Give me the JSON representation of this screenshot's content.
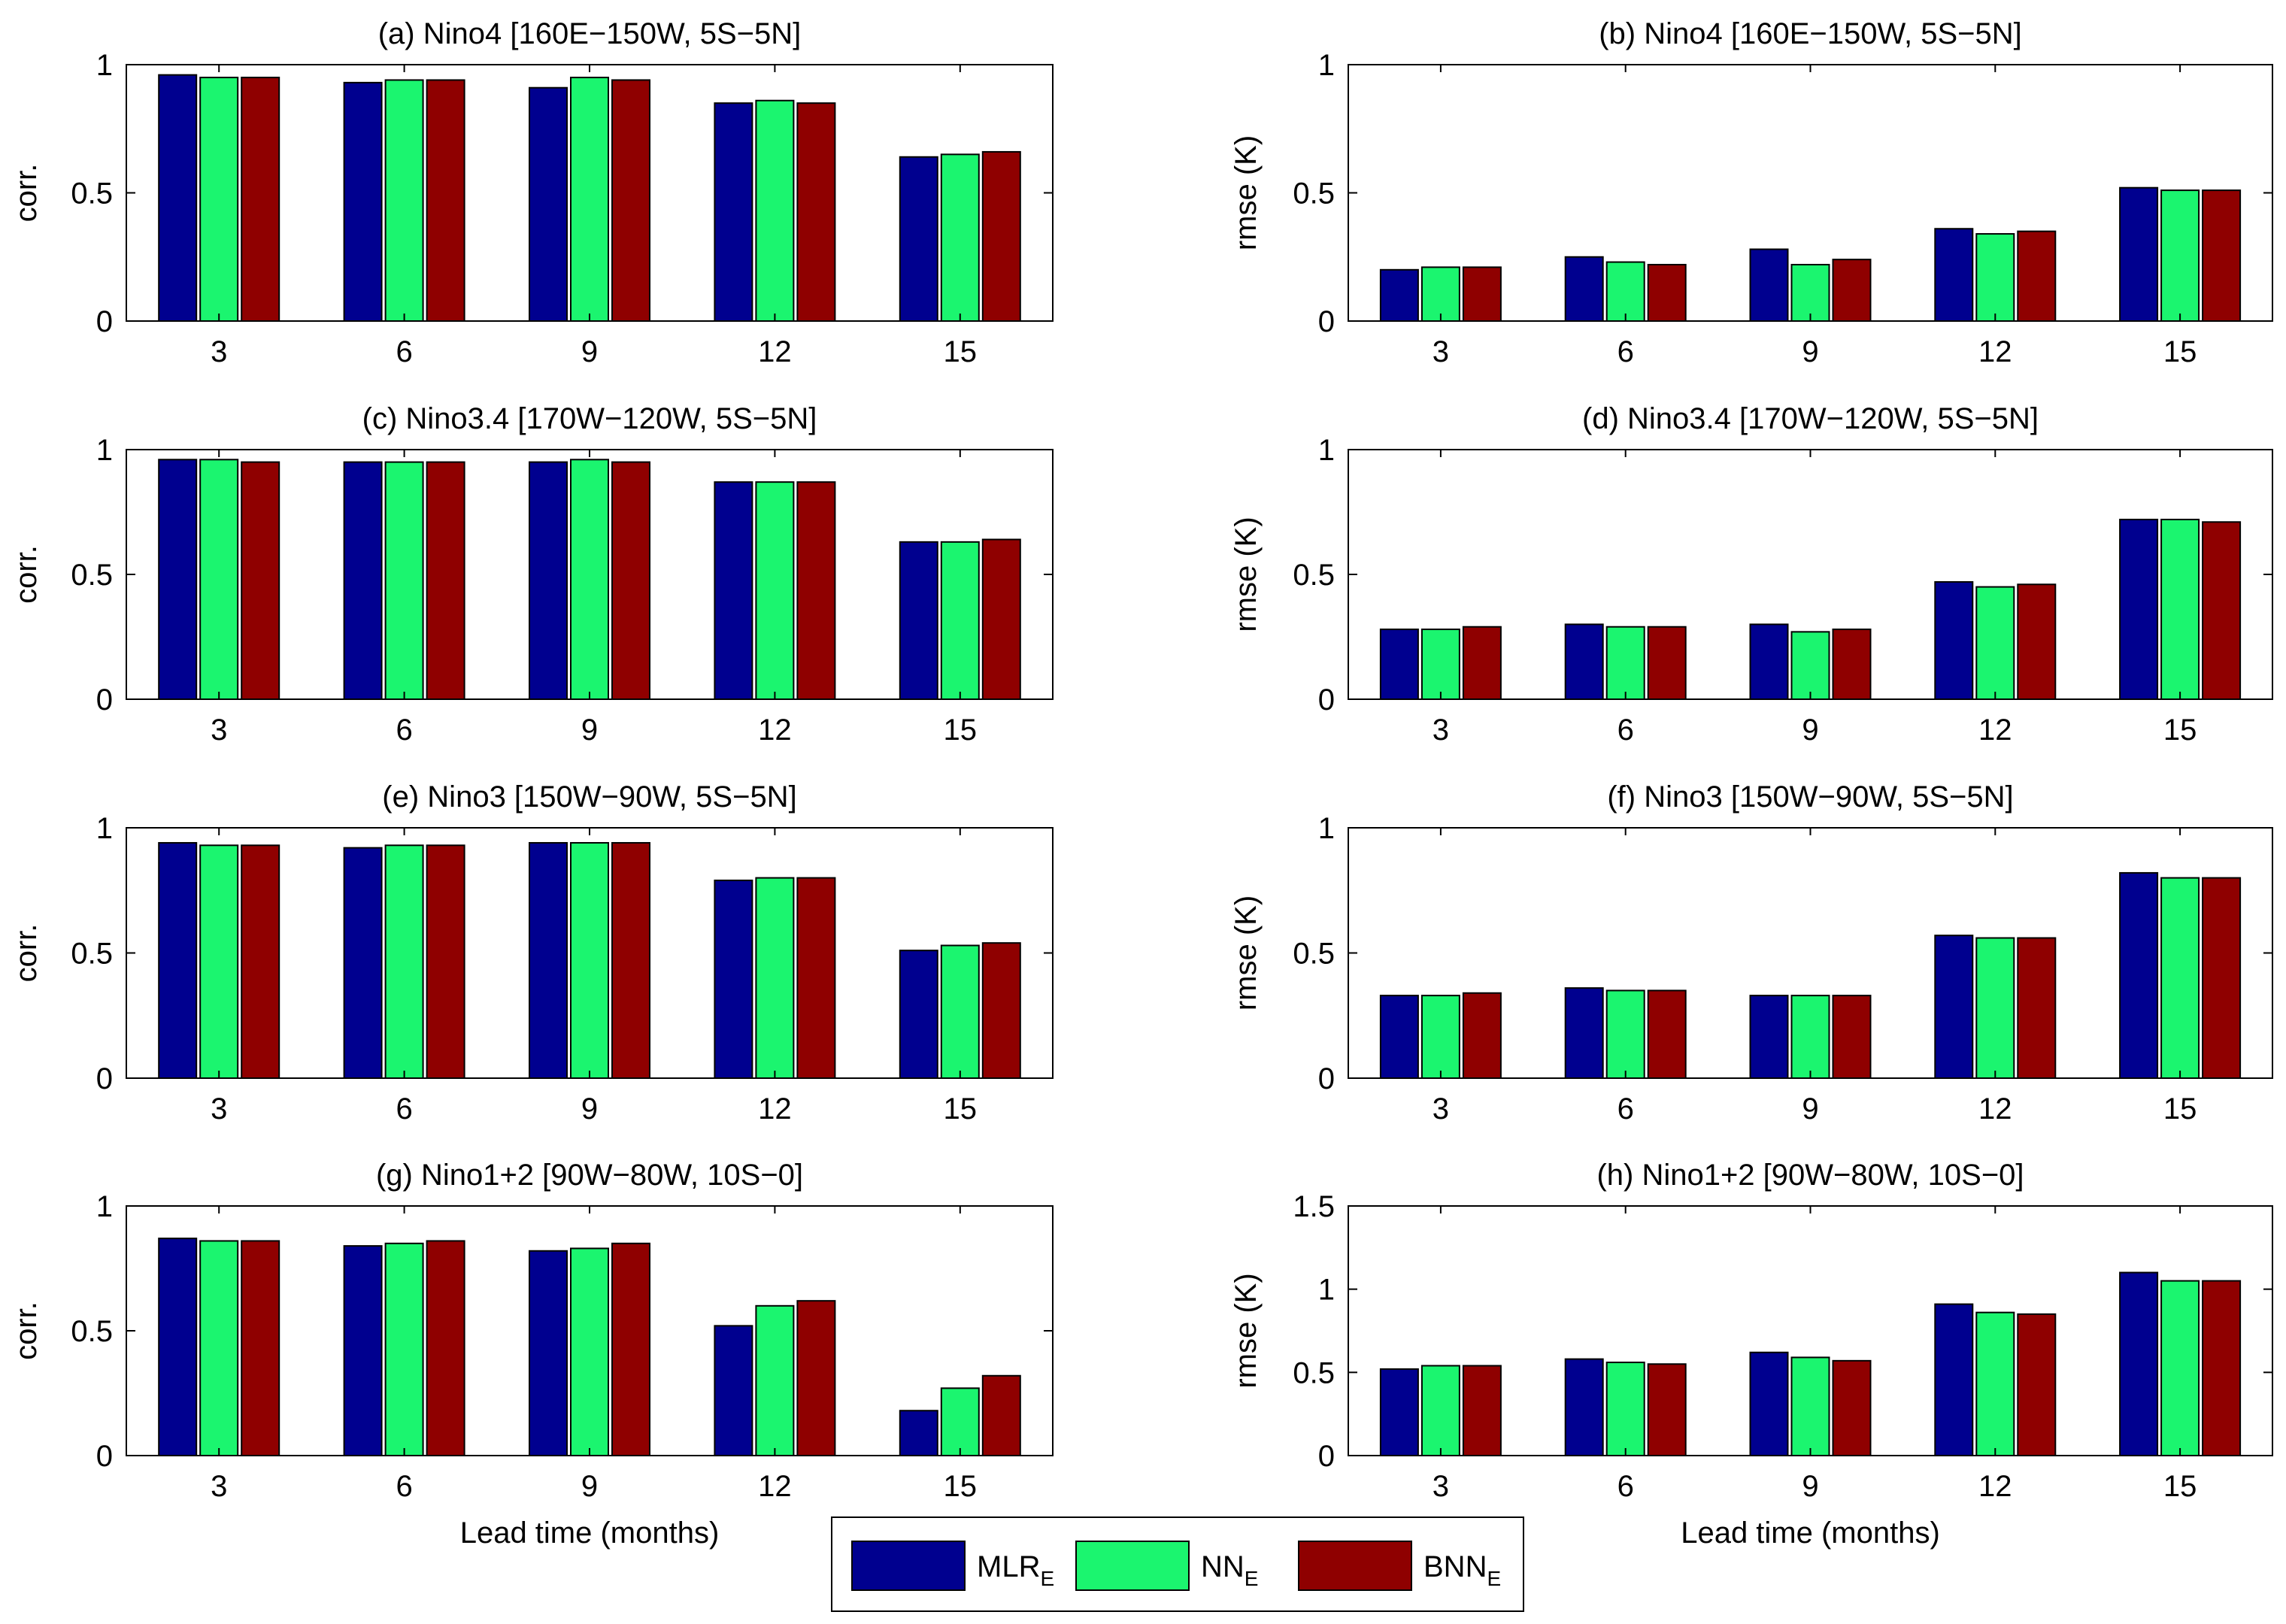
{
  "colors": {
    "MLR_E": "#00008f",
    "NN_E": "#1bf56f",
    "BNN_E": "#8f0000"
  },
  "legend": [
    {
      "key": "MLR_E",
      "label": "MLR",
      "sub": "E"
    },
    {
      "key": "NN_E",
      "label": "NN",
      "sub": "E"
    },
    {
      "key": "BNN_E",
      "label": "BNN",
      "sub": "E"
    }
  ],
  "xlabel": "Lead time (months)",
  "chart_data": [
    {
      "type": "bar",
      "panel": "a",
      "title": "(a) Nino4 [160E−150W, 5S−5N]",
      "ylabel": "corr.",
      "ylim": [
        0,
        1
      ],
      "yticks": [
        0,
        0.5,
        1
      ],
      "ytick_labels": [
        "0",
        "0.5",
        "1"
      ],
      "categories": [
        "3",
        "6",
        "9",
        "12",
        "15"
      ],
      "series": [
        {
          "name": "MLR_E",
          "values": [
            0.96,
            0.93,
            0.91,
            0.85,
            0.64
          ]
        },
        {
          "name": "NN_E",
          "values": [
            0.95,
            0.94,
            0.95,
            0.86,
            0.65
          ]
        },
        {
          "name": "BNN_E",
          "values": [
            0.95,
            0.94,
            0.94,
            0.85,
            0.66
          ]
        }
      ]
    },
    {
      "type": "bar",
      "panel": "b",
      "title": "(b) Nino4 [160E−150W, 5S−5N]",
      "ylabel": "rmse (K)",
      "ylim": [
        0,
        1
      ],
      "yticks": [
        0,
        0.5,
        1
      ],
      "ytick_labels": [
        "0",
        "0.5",
        "1"
      ],
      "categories": [
        "3",
        "6",
        "9",
        "12",
        "15"
      ],
      "series": [
        {
          "name": "MLR_E",
          "values": [
            0.2,
            0.25,
            0.28,
            0.36,
            0.52
          ]
        },
        {
          "name": "NN_E",
          "values": [
            0.21,
            0.23,
            0.22,
            0.34,
            0.51
          ]
        },
        {
          "name": "BNN_E",
          "values": [
            0.21,
            0.22,
            0.24,
            0.35,
            0.51
          ]
        }
      ]
    },
    {
      "type": "bar",
      "panel": "c",
      "title": "(c) Nino3.4 [170W−120W, 5S−5N]",
      "ylabel": "corr.",
      "ylim": [
        0,
        1
      ],
      "yticks": [
        0,
        0.5,
        1
      ],
      "ytick_labels": [
        "0",
        "0.5",
        "1"
      ],
      "categories": [
        "3",
        "6",
        "9",
        "12",
        "15"
      ],
      "series": [
        {
          "name": "MLR_E",
          "values": [
            0.96,
            0.95,
            0.95,
            0.87,
            0.63
          ]
        },
        {
          "name": "NN_E",
          "values": [
            0.96,
            0.95,
            0.96,
            0.87,
            0.63
          ]
        },
        {
          "name": "BNN_E",
          "values": [
            0.95,
            0.95,
            0.95,
            0.87,
            0.64
          ]
        }
      ]
    },
    {
      "type": "bar",
      "panel": "d",
      "title": "(d) Nino3.4 [170W−120W, 5S−5N]",
      "ylabel": "rmse (K)",
      "ylim": [
        0,
        1
      ],
      "yticks": [
        0,
        0.5,
        1
      ],
      "ytick_labels": [
        "0",
        "0.5",
        "1"
      ],
      "categories": [
        "3",
        "6",
        "9",
        "12",
        "15"
      ],
      "series": [
        {
          "name": "MLR_E",
          "values": [
            0.28,
            0.3,
            0.3,
            0.47,
            0.72
          ]
        },
        {
          "name": "NN_E",
          "values": [
            0.28,
            0.29,
            0.27,
            0.45,
            0.72
          ]
        },
        {
          "name": "BNN_E",
          "values": [
            0.29,
            0.29,
            0.28,
            0.46,
            0.71
          ]
        }
      ]
    },
    {
      "type": "bar",
      "panel": "e",
      "title": "(e) Nino3 [150W−90W, 5S−5N]",
      "ylabel": "corr.",
      "ylim": [
        0,
        1
      ],
      "yticks": [
        0,
        0.5,
        1
      ],
      "ytick_labels": [
        "0",
        "0.5",
        "1"
      ],
      "categories": [
        "3",
        "6",
        "9",
        "12",
        "15"
      ],
      "series": [
        {
          "name": "MLR_E",
          "values": [
            0.94,
            0.92,
            0.94,
            0.79,
            0.51
          ]
        },
        {
          "name": "NN_E",
          "values": [
            0.93,
            0.93,
            0.94,
            0.8,
            0.53
          ]
        },
        {
          "name": "BNN_E",
          "values": [
            0.93,
            0.93,
            0.94,
            0.8,
            0.54
          ]
        }
      ]
    },
    {
      "type": "bar",
      "panel": "f",
      "title": "(f) Nino3 [150W−90W, 5S−5N]",
      "ylabel": "rmse (K)",
      "ylim": [
        0,
        1
      ],
      "yticks": [
        0,
        0.5,
        1
      ],
      "ytick_labels": [
        "0",
        "0.5",
        "1"
      ],
      "categories": [
        "3",
        "6",
        "9",
        "12",
        "15"
      ],
      "series": [
        {
          "name": "MLR_E",
          "values": [
            0.33,
            0.36,
            0.33,
            0.57,
            0.82
          ]
        },
        {
          "name": "NN_E",
          "values": [
            0.33,
            0.35,
            0.33,
            0.56,
            0.8
          ]
        },
        {
          "name": "BNN_E",
          "values": [
            0.34,
            0.35,
            0.33,
            0.56,
            0.8
          ]
        }
      ]
    },
    {
      "type": "bar",
      "panel": "g",
      "title": "(g) Nino1+2 [90W−80W, 10S−0]",
      "ylabel": "corr.",
      "ylim": [
        0,
        1
      ],
      "yticks": [
        0,
        0.5,
        1
      ],
      "ytick_labels": [
        "0",
        "0.5",
        "1"
      ],
      "categories": [
        "3",
        "6",
        "9",
        "12",
        "15"
      ],
      "series": [
        {
          "name": "MLR_E",
          "values": [
            0.87,
            0.84,
            0.82,
            0.52,
            0.18
          ]
        },
        {
          "name": "NN_E",
          "values": [
            0.86,
            0.85,
            0.83,
            0.6,
            0.27
          ]
        },
        {
          "name": "BNN_E",
          "values": [
            0.86,
            0.86,
            0.85,
            0.62,
            0.32
          ]
        }
      ]
    },
    {
      "type": "bar",
      "panel": "h",
      "title": "(h) Nino1+2 [90W−80W, 10S−0]",
      "ylabel": "rmse (K)",
      "ylim": [
        0,
        1.5
      ],
      "yticks": [
        0,
        0.5,
        1,
        1.5
      ],
      "ytick_labels": [
        "0",
        "0.5",
        "1",
        "1.5"
      ],
      "categories": [
        "3",
        "6",
        "9",
        "12",
        "15"
      ],
      "series": [
        {
          "name": "MLR_E",
          "values": [
            0.52,
            0.58,
            0.62,
            0.91,
            1.1
          ]
        },
        {
          "name": "NN_E",
          "values": [
            0.54,
            0.56,
            0.59,
            0.86,
            1.05
          ]
        },
        {
          "name": "BNN_E",
          "values": [
            0.54,
            0.55,
            0.57,
            0.85,
            1.05
          ]
        }
      ]
    }
  ]
}
